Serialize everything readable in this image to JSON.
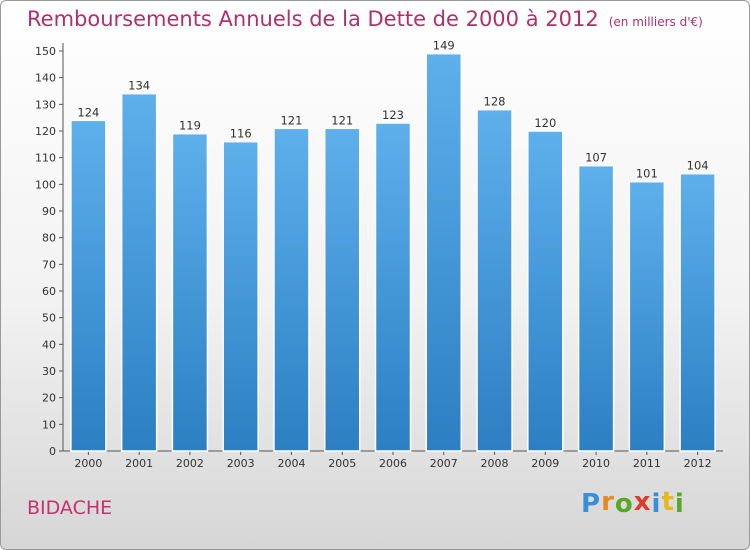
{
  "title": "Remboursements Annuels de la Dette de 2000 à 2012",
  "subtitle": "(en milliers d'€)",
  "place": "BIDACHE",
  "logo": {
    "text": "Proxiti",
    "letters": [
      {
        "ch": "P",
        "color": "#3a8fd8"
      },
      {
        "ch": "r",
        "color": "#e58a1f"
      },
      {
        "ch": "o",
        "color": "#5aa82a"
      },
      {
        "ch": "x",
        "color": "#e03a2a"
      },
      {
        "ch": "i",
        "color": "#3a8fd8"
      },
      {
        "ch": "t",
        "color": "#e5b81f"
      },
      {
        "ch": "i",
        "color": "#5aa82a"
      }
    ]
  },
  "chart_data": {
    "type": "bar",
    "categories": [
      "2000",
      "2001",
      "2002",
      "2003",
      "2004",
      "2005",
      "2006",
      "2007",
      "2008",
      "2009",
      "2010",
      "2011",
      "2012"
    ],
    "values": [
      124,
      134,
      119,
      116,
      121,
      121,
      123,
      149,
      128,
      120,
      107,
      101,
      104
    ],
    "ylim": [
      0,
      150
    ],
    "yticks": [
      0,
      10,
      20,
      30,
      40,
      50,
      60,
      70,
      80,
      90,
      100,
      110,
      120,
      130,
      140,
      150
    ],
    "grid": false,
    "bar_color_top": "#5eb0ec",
    "bar_color_bottom": "#2b7fc2"
  }
}
